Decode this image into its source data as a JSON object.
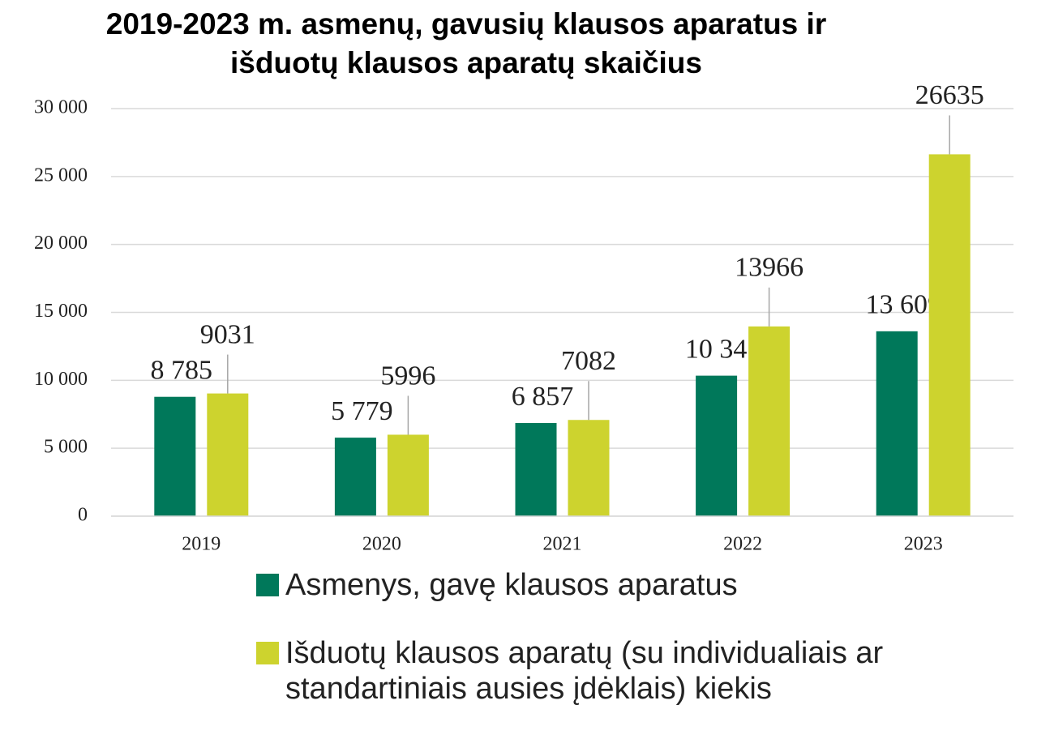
{
  "chart_data": {
    "type": "bar",
    "title": [
      "2019-2023 m. asmenų, gavusių klausos aparatus ir",
      "išduotų klausos aparatų skaičius"
    ],
    "categories": [
      "2019",
      "2020",
      "2021",
      "2022",
      "2023"
    ],
    "series": [
      {
        "name": "Asmenys, gavę klausos aparatus",
        "color": "#00785a",
        "values": [
          8785,
          5779,
          6857,
          10341,
          13609
        ],
        "value_labels": [
          "8 785",
          "5 779",
          "6 857",
          "10 341",
          "13 609"
        ]
      },
      {
        "name": "Išduotų klausos aparatų (su individualiais ar standartiniais ausies įdėklais) kiekis",
        "color": "#cdd32e",
        "values": [
          9031,
          5996,
          7082,
          13966,
          26635
        ]
      }
    ],
    "ylim": [
      0,
      30000
    ],
    "yticks": [
      0,
      {
        "value": 5000,
        "label": "5 000"
      },
      {
        "value": 10000,
        "label": "10 000"
      },
      {
        "value": 15000,
        "label": "15 000"
      },
      {
        "value": 20000,
        "label": "20 000"
      },
      {
        "value": 25000,
        "label": "25 000"
      },
      {
        "value": 30000,
        "label": "30 000"
      }
    ],
    "grid": true,
    "legend": "bottom"
  }
}
